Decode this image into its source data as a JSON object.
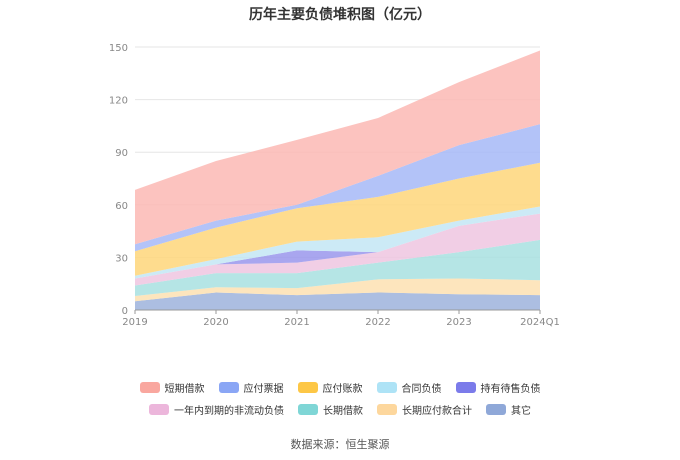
{
  "chart_data": {
    "type": "area",
    "stacked": true,
    "title": "历年主要负债堆积图（亿元）",
    "x": [
      "2019",
      "2020",
      "2021",
      "2022",
      "2023",
      "2024Q1"
    ],
    "ylim": [
      0,
      150
    ],
    "yticks": [
      0,
      30,
      60,
      90,
      120,
      150
    ],
    "grid": true,
    "legend_position": "bottom",
    "series": [
      {
        "name": "其它",
        "color": "#9db3dc",
        "values": [
          5,
          10,
          8.5,
          10,
          9,
          8.5
        ]
      },
      {
        "name": "长期应付款合计",
        "color": "#fde0b2",
        "values": [
          3,
          3,
          4,
          7.5,
          9,
          8.5
        ]
      },
      {
        "name": "长期借款",
        "color": "#a8e0e0",
        "values": [
          6,
          8,
          8.5,
          9.5,
          15,
          23
        ]
      },
      {
        "name": "一年内到期的非流动负债",
        "color": "#efc6e0",
        "values": [
          4,
          5,
          6,
          6,
          15,
          15
        ]
      },
      {
        "name": "持有待售负债",
        "color": "#9a96ec",
        "values": [
          0,
          0,
          7,
          0,
          0,
          0
        ]
      },
      {
        "name": "合同负债",
        "color": "#c3e6f5",
        "values": [
          1.5,
          3,
          5,
          8.5,
          3,
          4
        ]
      },
      {
        "name": "应付账款",
        "color": "#fed67a",
        "values": [
          14,
          18,
          19,
          23,
          24,
          25
        ]
      },
      {
        "name": "应付票据",
        "color": "#a6b9f7",
        "values": [
          4,
          4,
          2,
          12,
          19,
          22
        ]
      },
      {
        "name": "短期借款",
        "color": "#fcb9b4",
        "values": [
          31,
          34,
          37,
          33,
          36,
          42
        ]
      }
    ]
  },
  "legend_rows": [
    [
      {
        "label": "短期借款",
        "color": "#f9a79f"
      },
      {
        "label": "应付票据",
        "color": "#8aa6f5"
      },
      {
        "label": "应付账款",
        "color": "#fdc746"
      },
      {
        "label": "合同负债",
        "color": "#aee3f6"
      },
      {
        "label": "持有待售负债",
        "color": "#7b7bea"
      }
    ],
    [
      {
        "label": "一年内到期的非流动负债",
        "color": "#ecb6db"
      },
      {
        "label": "长期借款",
        "color": "#7fd6d6"
      },
      {
        "label": "长期应付款合计",
        "color": "#fdd79d"
      },
      {
        "label": "其它",
        "color": "#8fa8d8"
      }
    ]
  ],
  "source": "数据来源：恒生聚源"
}
